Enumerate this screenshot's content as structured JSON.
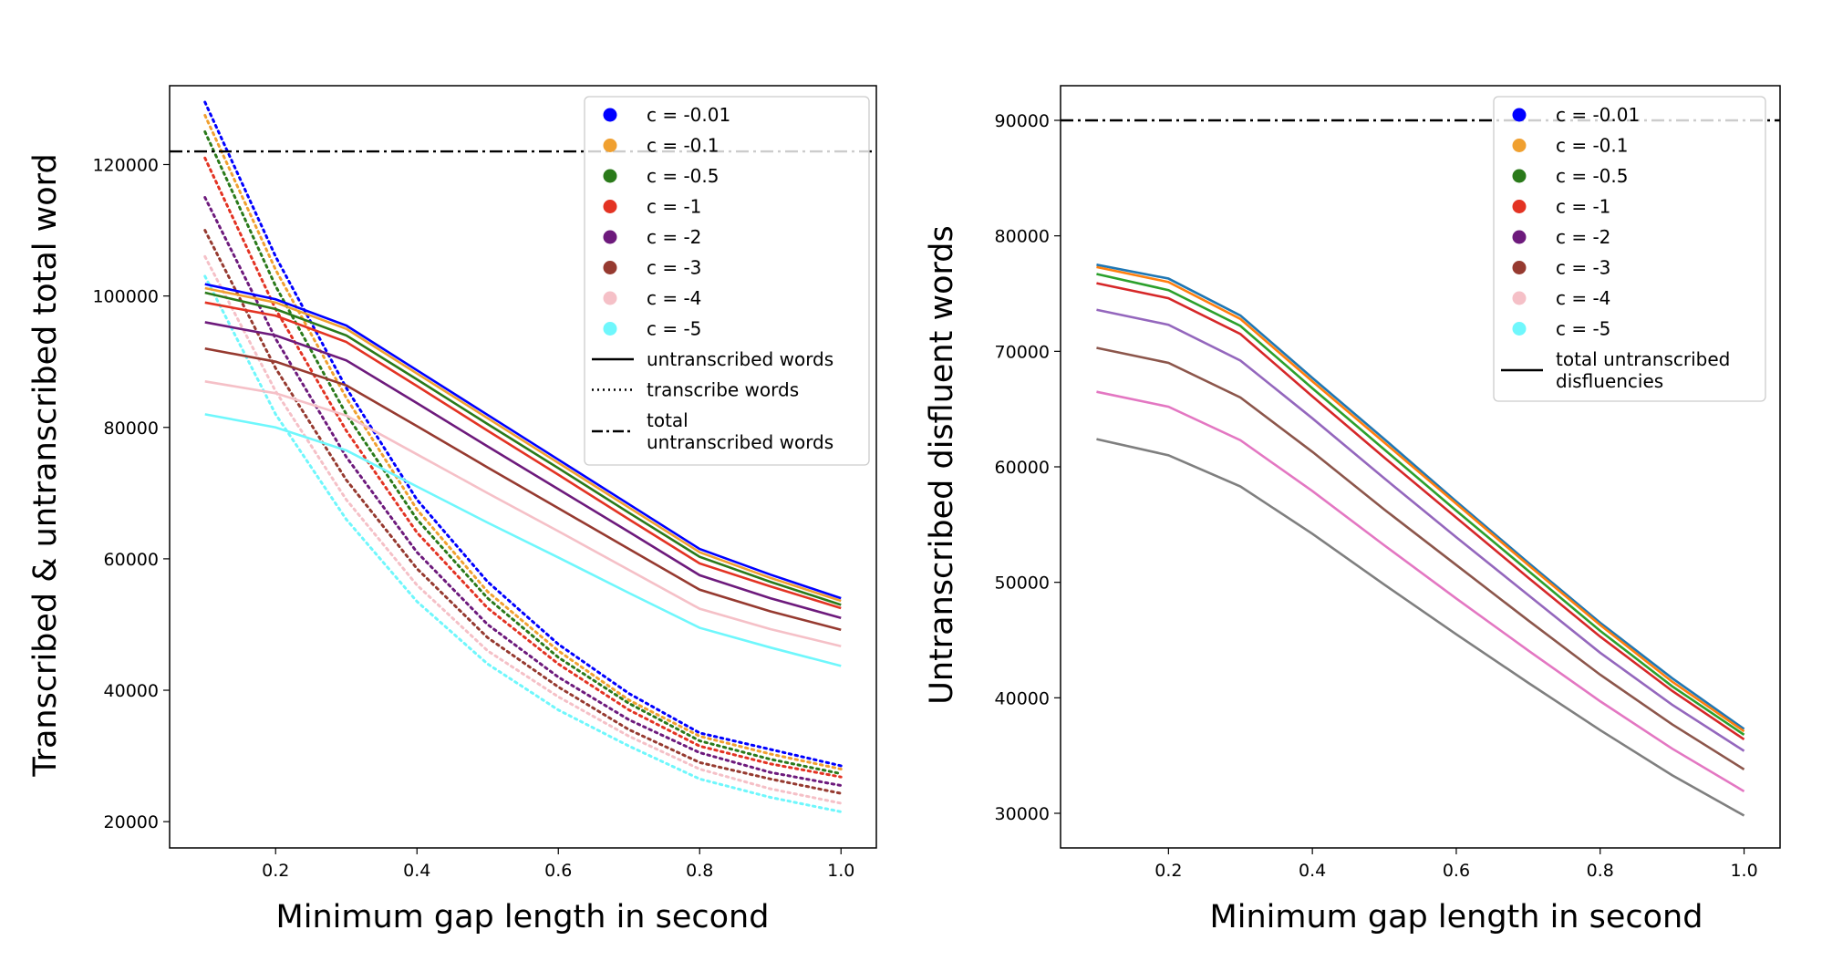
{
  "chart_data": [
    {
      "type": "line",
      "xlabel": "Minimum gap length in second",
      "ylabel": "Transcribed & untranscribed total word",
      "x": [
        0.1,
        0.2,
        0.3,
        0.4,
        0.5,
        0.6,
        0.7,
        0.8,
        0.9,
        1.0
      ],
      "xlim": [
        0.05,
        1.05
      ],
      "ylim": [
        16000,
        132000
      ],
      "xticks": [
        "0.2",
        "0.4",
        "0.6",
        "0.8",
        "1.0"
      ],
      "yticks": [
        "20000",
        "40000",
        "60000",
        "80000",
        "100000",
        "120000"
      ],
      "legend_position": "top-right",
      "series": [
        {
          "name": "c = -0.01",
          "color": "#0000ff",
          "untranscribed": [
            101800,
            99500,
            95500,
            88700,
            81900,
            75100,
            68300,
            61500,
            57600,
            54000
          ],
          "transcribed": [
            129500,
            106000,
            86000,
            69000,
            56500,
            47000,
            39500,
            33500,
            31000,
            28500
          ]
        },
        {
          "name": "c = -0.1",
          "color": "#f0a030",
          "untranscribed": [
            101200,
            99000,
            95000,
            88200,
            81400,
            74600,
            67800,
            61000,
            57100,
            53600
          ],
          "transcribed": [
            127500,
            104000,
            84500,
            67500,
            55000,
            46000,
            38500,
            33000,
            30300,
            28000
          ]
        },
        {
          "name": "c = -0.5",
          "color": "#2a7a1a",
          "untranscribed": [
            100500,
            98000,
            94000,
            87300,
            80500,
            73800,
            67000,
            60300,
            56500,
            53000
          ],
          "transcribed": [
            125000,
            101500,
            82000,
            66000,
            54000,
            45000,
            38000,
            32300,
            29500,
            27300
          ]
        },
        {
          "name": "c = -1",
          "color": "#e33323",
          "untranscribed": [
            99000,
            97000,
            93000,
            86300,
            79500,
            72800,
            66000,
            59300,
            55800,
            52500
          ],
          "transcribed": [
            121000,
            98000,
            79500,
            64000,
            52500,
            44000,
            37000,
            31500,
            28800,
            26800
          ]
        },
        {
          "name": "c = -2",
          "color": "#6d1a7c",
          "untranscribed": [
            96000,
            94000,
            90200,
            83700,
            77100,
            70600,
            64100,
            57500,
            54000,
            51000
          ],
          "transcribed": [
            115000,
            93500,
            75500,
            61000,
            50000,
            42000,
            35500,
            30500,
            27500,
            25500
          ]
        },
        {
          "name": "c = -3",
          "color": "#963a30",
          "untranscribed": [
            92000,
            90000,
            86400,
            80200,
            73900,
            67700,
            61500,
            55300,
            52000,
            49200
          ],
          "transcribed": [
            110000,
            89000,
            72000,
            58500,
            48000,
            40500,
            34000,
            29000,
            26500,
            24300
          ]
        },
        {
          "name": "c = -4",
          "color": "#f5c0c7",
          "untranscribed": [
            87000,
            85200,
            81800,
            75900,
            70000,
            64200,
            58300,
            52400,
            49300,
            46700
          ],
          "transcribed": [
            106000,
            85500,
            69000,
            56000,
            46000,
            39000,
            33000,
            28000,
            25000,
            22800
          ]
        },
        {
          "name": "c = -5",
          "color": "#6ff7fc",
          "untranscribed": [
            82000,
            80000,
            76500,
            71000,
            65500,
            60200,
            54800,
            49500,
            46500,
            43700
          ],
          "transcribed": [
            103000,
            82000,
            66000,
            53500,
            44000,
            37000,
            31500,
            26500,
            23700,
            21500
          ]
        }
      ],
      "total_untranscribed_words": 122000,
      "legend_style_entries": [
        {
          "label": "untranscribed words",
          "style": "solid"
        },
        {
          "label": "transcribe words",
          "style": "dotted"
        },
        {
          "label_lines": [
            "total",
            "untranscribed words"
          ],
          "style": "dashdot"
        }
      ]
    },
    {
      "type": "line",
      "xlabel": "Minimum gap length in second",
      "ylabel": "Untranscribed disfluent words",
      "x": [
        0.1,
        0.2,
        0.3,
        0.4,
        0.5,
        0.6,
        0.7,
        0.8,
        0.9,
        1.0
      ],
      "xlim": [
        0.05,
        1.05
      ],
      "ylim": [
        27000,
        93000
      ],
      "xticks": [
        "0.2",
        "0.4",
        "0.6",
        "0.8",
        "1.0"
      ],
      "yticks": [
        "30000",
        "40000",
        "50000",
        "60000",
        "70000",
        "80000",
        "90000"
      ],
      "legend_position": "top-right",
      "legend_entries": [
        {
          "name": "c = -0.01",
          "color": "#0000ff"
        },
        {
          "name": "c = -0.1",
          "color": "#f0a030"
        },
        {
          "name": "c = -0.5",
          "color": "#2a7a1a"
        },
        {
          "name": "c = -1",
          "color": "#e33323"
        },
        {
          "name": "c = -2",
          "color": "#6d1a7c"
        },
        {
          "name": "c = -3",
          "color": "#963a30"
        },
        {
          "name": "c = -4",
          "color": "#f5c0c7"
        },
        {
          "name": "c = -5",
          "color": "#6ff7fc"
        }
      ],
      "legend_style_entry": {
        "label_lines": [
          "total untranscribed",
          "disfluencies"
        ],
        "style": "solid"
      },
      "series": [
        {
          "color": "#1f77b4",
          "values": [
            77500,
            76300,
            73100,
            67700,
            62400,
            57000,
            51700,
            46500,
            41700,
            37300
          ]
        },
        {
          "color": "#ff7f0e",
          "values": [
            77300,
            76000,
            72800,
            67400,
            62100,
            56800,
            51500,
            46300,
            41400,
            37100
          ]
        },
        {
          "color": "#2ca02c",
          "values": [
            76700,
            75300,
            72200,
            66800,
            61500,
            56200,
            51000,
            45800,
            41000,
            36800
          ]
        },
        {
          "color": "#d62728",
          "values": [
            75900,
            74600,
            71500,
            66100,
            60800,
            55600,
            50400,
            45300,
            40600,
            36400
          ]
        },
        {
          "color": "#9467bd",
          "values": [
            73600,
            72300,
            69200,
            64200,
            59000,
            53900,
            48900,
            43900,
            39400,
            35400
          ]
        },
        {
          "color": "#8c564b",
          "values": [
            70300,
            69000,
            66000,
            61300,
            56300,
            51500,
            46700,
            42000,
            37700,
            33800
          ]
        },
        {
          "color": "#e377c2",
          "values": [
            66500,
            65200,
            62300,
            57900,
            53200,
            48600,
            44100,
            39700,
            35600,
            31900
          ]
        },
        {
          "color": "#7f7f7f",
          "values": [
            62400,
            61000,
            58300,
            54200,
            49800,
            45500,
            41300,
            37200,
            33300,
            29800
          ]
        }
      ],
      "total_untranscribed_disfluencies": 90000
    }
  ]
}
